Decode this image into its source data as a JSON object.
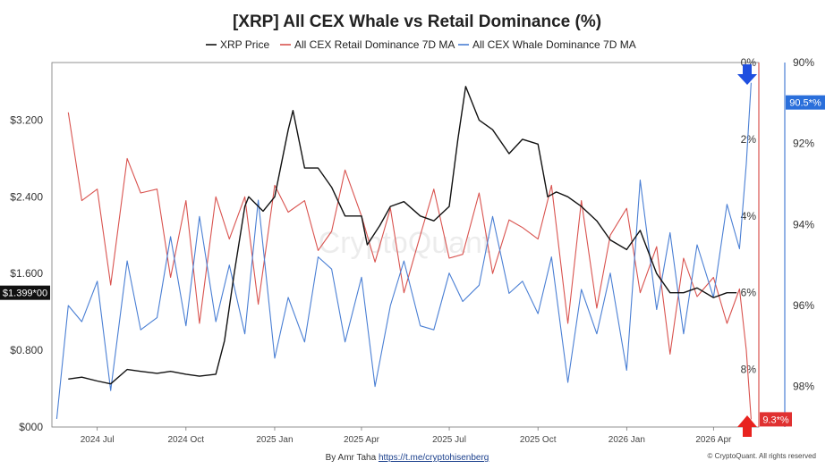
{
  "chart_data": {
    "type": "line",
    "title": "[XRP] All CEX Whale vs Retail Dominance (%)",
    "legend_position": "top-center",
    "grid": false,
    "legend": [
      {
        "name": "XRP Price",
        "color": "#111111"
      },
      {
        "name": "All CEX Retail Dominance 7D MA",
        "color": "#d9534f"
      },
      {
        "name": "All CEX Whale Dominance 7D MA",
        "color": "#4a7fd4"
      }
    ],
    "x_ticks": [
      "2024 Jul",
      "2024 Oct",
      "2025 Jan",
      "2025 Apr",
      "2025 Jul",
      "2025 Oct",
      "2026 Jan",
      "2026 Apr"
    ],
    "x_range": [
      "2024-05-15",
      "2026-05-18"
    ],
    "axes": {
      "price": {
        "ticks": [
          "$000",
          "$0.800",
          "$1.600",
          "$2.400",
          "$3.200"
        ],
        "range": [
          0,
          3.8
        ]
      },
      "retail": {
        "ticks": [
          "0%",
          "2%",
          "4%",
          "6%",
          "8%"
        ],
        "range": [
          0,
          9.5
        ],
        "inverted": true
      },
      "whale": {
        "ticks": [
          "90%",
          "92%",
          "94%",
          "96%",
          "98%"
        ],
        "range": [
          90,
          99
        ],
        "inverted": true
      }
    },
    "current_labels": {
      "price": "$1.399*00",
      "retail": "9.3*%",
      "whale": "90.5*%"
    },
    "series": [
      {
        "name": "XRP Price",
        "color": "#111111",
        "x": [
          "2024-06-01",
          "2024-06-15",
          "2024-07-01",
          "2024-07-15",
          "2024-08-01",
          "2024-08-15",
          "2024-09-01",
          "2024-09-15",
          "2024-10-01",
          "2024-10-15",
          "2024-11-01",
          "2024-11-10",
          "2024-11-20",
          "2024-12-01",
          "2024-12-05",
          "2024-12-20",
          "2025-01-01",
          "2025-01-15",
          "2025-01-20",
          "2025-02-01",
          "2025-02-15",
          "2025-03-01",
          "2025-03-15",
          "2025-04-01",
          "2025-04-07",
          "2025-04-20",
          "2025-05-01",
          "2025-05-15",
          "2025-06-01",
          "2025-06-15",
          "2025-07-01",
          "2025-07-10",
          "2025-07-18",
          "2025-08-01",
          "2025-08-15",
          "2025-09-01",
          "2025-09-15",
          "2025-10-01",
          "2025-10-11",
          "2025-10-20",
          "2025-11-01",
          "2025-11-15",
          "2025-12-01",
          "2025-12-15",
          "2026-01-01",
          "2026-01-15",
          "2026-02-01",
          "2026-02-15",
          "2026-03-01",
          "2026-03-15",
          "2026-04-01",
          "2026-04-15",
          "2026-04-25"
        ],
        "values": [
          0.5,
          0.52,
          0.48,
          0.45,
          0.6,
          0.58,
          0.56,
          0.58,
          0.55,
          0.53,
          0.55,
          0.9,
          1.6,
          2.3,
          2.4,
          2.25,
          2.4,
          3.1,
          3.3,
          2.7,
          2.7,
          2.5,
          2.2,
          2.2,
          1.9,
          2.1,
          2.3,
          2.35,
          2.2,
          2.15,
          2.3,
          3.0,
          3.55,
          3.2,
          3.1,
          2.85,
          3.0,
          2.95,
          2.4,
          2.45,
          2.4,
          2.3,
          2.15,
          1.95,
          1.85,
          2.05,
          1.6,
          1.4,
          1.4,
          1.45,
          1.35,
          1.4,
          1.4
        ]
      },
      {
        "name": "All CEX Retail Dominance 7D MA",
        "color": "#d9534f",
        "x": [
          "2024-06-01",
          "2024-06-15",
          "2024-07-01",
          "2024-07-15",
          "2024-08-01",
          "2024-08-15",
          "2024-09-01",
          "2024-09-15",
          "2024-10-01",
          "2024-10-15",
          "2024-11-01",
          "2024-11-15",
          "2024-12-01",
          "2024-12-15",
          "2025-01-01",
          "2025-01-15",
          "2025-02-01",
          "2025-02-15",
          "2025-03-01",
          "2025-03-15",
          "2025-04-01",
          "2025-04-15",
          "2025-05-01",
          "2025-05-15",
          "2025-06-01",
          "2025-06-15",
          "2025-07-01",
          "2025-07-15",
          "2025-08-01",
          "2025-08-15",
          "2025-09-01",
          "2025-09-15",
          "2025-10-01",
          "2025-10-15",
          "2025-11-01",
          "2025-11-15",
          "2025-12-01",
          "2025-12-15",
          "2026-01-01",
          "2026-01-15",
          "2026-02-01",
          "2026-02-15",
          "2026-03-01",
          "2026-03-15",
          "2026-04-01",
          "2026-04-15",
          "2026-04-28",
          "2026-05-05",
          "2026-05-10"
        ],
        "values": [
          1.3,
          3.6,
          3.3,
          5.8,
          2.5,
          3.4,
          3.3,
          5.6,
          3.6,
          6.8,
          3.5,
          4.6,
          3.5,
          6.3,
          3.2,
          3.9,
          3.6,
          4.9,
          4.4,
          2.8,
          4.0,
          5.2,
          3.8,
          6.0,
          4.5,
          3.3,
          5.1,
          5.0,
          3.4,
          5.5,
          4.1,
          4.3,
          4.6,
          3.2,
          6.8,
          3.6,
          6.4,
          4.5,
          3.8,
          6.0,
          4.8,
          7.6,
          5.1,
          6.1,
          5.6,
          6.8,
          5.9,
          7.5,
          9.3
        ]
      },
      {
        "name": "All CEX Whale Dominance 7D MA",
        "color": "#4a7fd4",
        "x": [
          "2024-05-20",
          "2024-06-01",
          "2024-06-15",
          "2024-07-01",
          "2024-07-15",
          "2024-08-01",
          "2024-08-15",
          "2024-09-01",
          "2024-09-15",
          "2024-10-01",
          "2024-10-15",
          "2024-11-01",
          "2024-11-15",
          "2024-12-01",
          "2024-12-15",
          "2025-01-01",
          "2025-01-15",
          "2025-02-01",
          "2025-02-15",
          "2025-03-01",
          "2025-03-15",
          "2025-04-01",
          "2025-04-15",
          "2025-05-01",
          "2025-05-15",
          "2025-06-01",
          "2025-06-15",
          "2025-07-01",
          "2025-07-15",
          "2025-08-01",
          "2025-08-15",
          "2025-09-01",
          "2025-09-15",
          "2025-10-01",
          "2025-10-15",
          "2025-11-01",
          "2025-11-15",
          "2025-12-01",
          "2025-12-15",
          "2026-01-01",
          "2026-01-15",
          "2026-02-01",
          "2026-02-15",
          "2026-03-01",
          "2026-03-15",
          "2026-04-01",
          "2026-04-15",
          "2026-04-28",
          "2026-05-05",
          "2026-05-10"
        ],
        "values": [
          98.8,
          96.0,
          96.4,
          95.4,
          98.1,
          94.9,
          96.6,
          96.3,
          94.3,
          96.5,
          93.8,
          96.4,
          95.0,
          96.7,
          93.4,
          97.3,
          95.8,
          96.9,
          94.8,
          95.1,
          96.9,
          95.3,
          98.0,
          96.0,
          94.9,
          96.5,
          96.6,
          95.2,
          95.9,
          95.5,
          93.8,
          95.7,
          95.4,
          96.2,
          94.8,
          97.9,
          95.6,
          96.7,
          95.2,
          97.6,
          92.9,
          96.1,
          94.2,
          96.7,
          94.5,
          95.8,
          93.5,
          94.6,
          92.5,
          90.5
        ]
      }
    ],
    "watermark": "CryptoQuant",
    "footer": {
      "author_prefix": "By Amr Taha ",
      "author_link": "https://t.me/cryptohisenberg",
      "credit": "© CryptoQuant. All rights reserved"
    }
  }
}
